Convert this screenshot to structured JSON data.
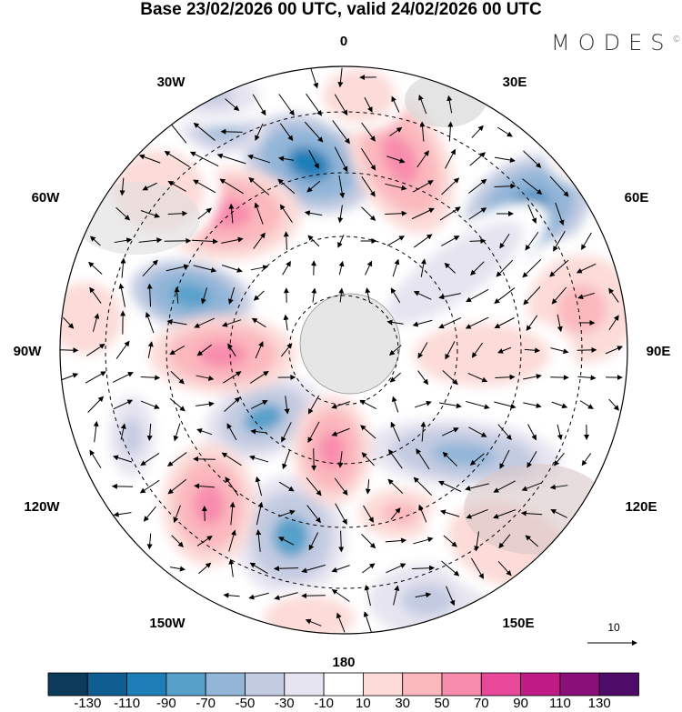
{
  "title": "Base 23/02/2026 00 UTC, valid 24/02/2026 00 UTC",
  "logo": {
    "text": "MODES",
    "mark": "©"
  },
  "longitude_labels": {
    "top": "0",
    "bottom": "180",
    "left": "90W",
    "right": "90E",
    "tl1": "30W",
    "tl2": "60W",
    "tr1": "30E",
    "tr2": "60E",
    "bl1": "120W",
    "bl2": "150W",
    "br1": "120E",
    "br2": "150E"
  },
  "vector_reference": "10",
  "colorbar": {
    "labels": [
      "-130",
      "-110",
      "-90",
      "-70",
      "-50",
      "-30",
      "-10",
      "10",
      "30",
      "50",
      "70",
      "90",
      "110",
      "130"
    ],
    "colors": [
      "#0b3a5a",
      "#0f5e92",
      "#1e7fb8",
      "#56a0ca",
      "#92b5d8",
      "#c3cbe1",
      "#e6e4f0",
      "#ffffff",
      "#fcdbd8",
      "#fbb8bd",
      "#f88cad",
      "#e7489a",
      "#c01a86",
      "#8a0f78",
      "#4e0c68"
    ]
  }
}
